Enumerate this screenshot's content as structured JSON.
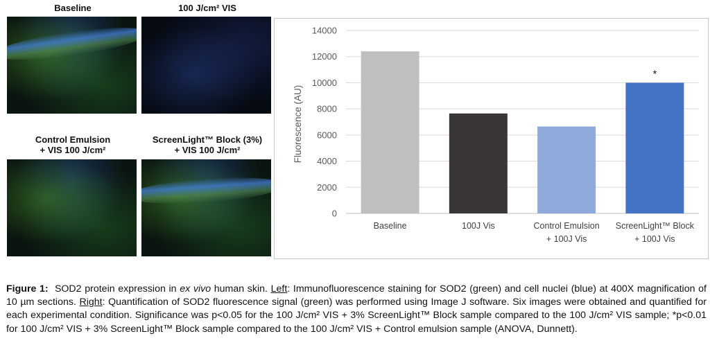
{
  "panels": {
    "baseline_label": "Baseline",
    "vis_label": "100 J/cm² VIS",
    "control_label_1": "Control Emulsion",
    "control_label_2": "+ VIS 100 J/cm²",
    "screenlight_label_1": "ScreenLight™ Block (3%)",
    "screenlight_label_2": "+ VIS 100 J/cm²"
  },
  "chart_data": {
    "type": "bar",
    "categories": [
      [
        "Baseline"
      ],
      [
        "100J Vis"
      ],
      [
        "Control Emulsion",
        "+ 100J Vis"
      ],
      [
        "ScreenLight™ Block",
        "+ 100J Vis"
      ]
    ],
    "values": [
      12400,
      7650,
      6650,
      10000
    ],
    "colors": [
      "#bfbfbf",
      "#3a3536",
      "#8eaadb",
      "#4472c4"
    ],
    "annotations": [
      "",
      "",
      "",
      "*"
    ],
    "ylabel": "Fluorescence (AU)",
    "xlabel": "",
    "ylim": [
      0,
      14000
    ],
    "yticks": [
      0,
      2000,
      4000,
      6000,
      8000,
      10000,
      12000,
      14000
    ],
    "grid": true
  },
  "caption": {
    "figure_label": "Figure 1:",
    "text_1": "SOD2 protein expression in",
    "ex_vivo": "ex vivo",
    "text_2": "human skin.",
    "left_label": "Left",
    "left_text": ": Immunofluorescence staining for SOD2 (green) and cell nuclei (blue) at 400X magnification of 10 µm sections.",
    "right_label": "Right",
    "right_text": ": Quantification of SOD2 fluorescence signal (green) was performed using Image J software. Six images were obtained and quantified for each experimental condition. Significance was p<0.05 for the 100 J/cm² VIS + 3% ScreenLight™ Block sample compared to the 100 J/cm² VIS sample; *p<0.01 for 100 J/cm² VIS + 3% ScreenLight™ Block sample compared to the 100 J/cm² VIS + Control emulsion sample (ANOVA, Dunnett)."
  }
}
